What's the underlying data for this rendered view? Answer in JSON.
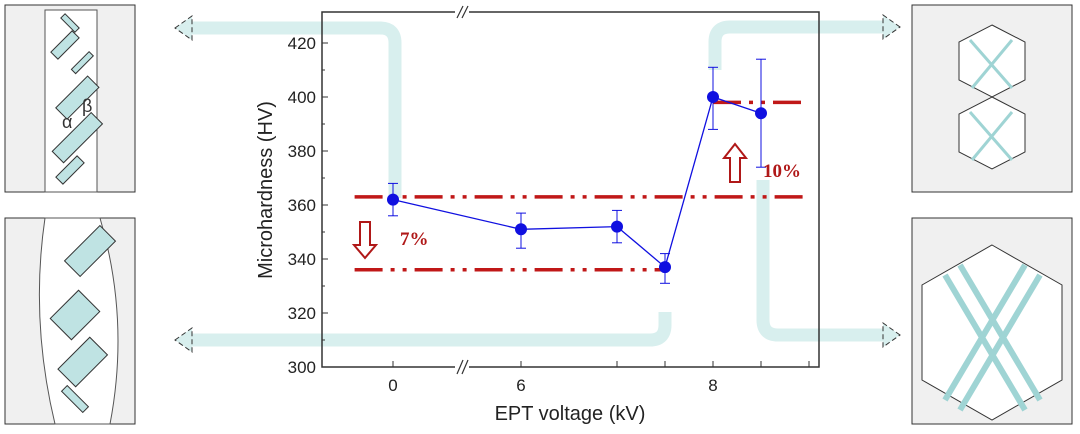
{
  "chart_data": {
    "type": "line",
    "title": "",
    "xlabel": "EPT voltage (kV)",
    "ylabel": "Microhardness (HV)",
    "ylim": [
      300,
      425
    ],
    "yticks": [
      "300",
      "320",
      "340",
      "360",
      "380",
      "400",
      "420"
    ],
    "xtick_labels": [
      {
        "x": 0,
        "label": "0"
      },
      {
        "x": 6,
        "label": "6"
      },
      {
        "x": 8,
        "label": "8"
      }
    ],
    "axis_break": true,
    "series": [
      {
        "name": "Microhardness",
        "color": "#1010e0",
        "x": [
          0,
          6,
          7,
          7.5,
          8,
          8.5
        ],
        "values": [
          362,
          351,
          352,
          337,
          400,
          394
        ],
        "err_low": [
          356,
          344,
          346,
          331,
          388,
          374
        ],
        "err_high": [
          368,
          357,
          358,
          342,
          411,
          414
        ]
      }
    ],
    "reference_lines": [
      {
        "y": 363,
        "x_from": -0.3,
        "x_to": 9
      },
      {
        "y": 336,
        "x_from": -0.3,
        "x_to": 7.5
      },
      {
        "y": 398,
        "x_from": 8,
        "x_to": 9
      }
    ],
    "annotations": [
      {
        "text": "7%",
        "direction": "decrease",
        "color": "#b01818"
      },
      {
        "text": "10%",
        "direction": "increase",
        "color": "#b01818"
      }
    ],
    "micro_labels": {
      "alpha": "α",
      "beta": "β"
    }
  }
}
